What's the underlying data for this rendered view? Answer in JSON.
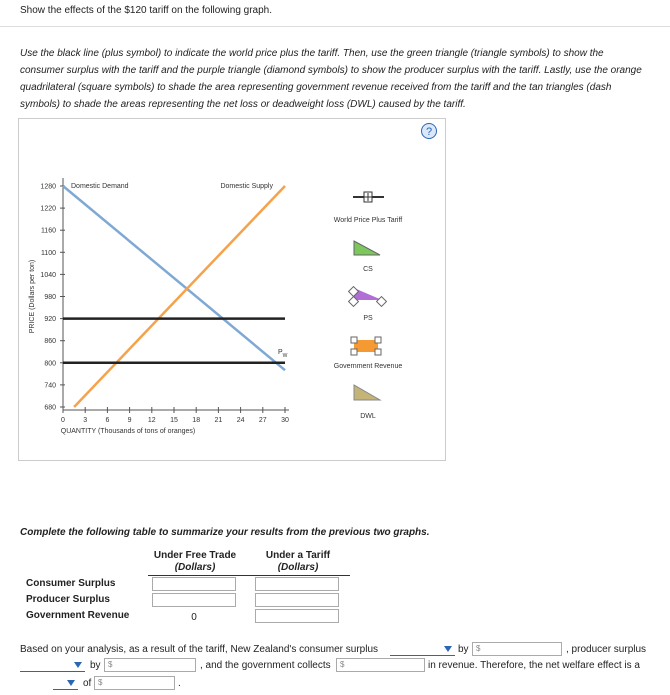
{
  "header": {
    "title": "Show the effects of the $120 tariff on the following graph."
  },
  "instructions": "Use the black line (plus symbol) to indicate the world price plus the tariff. Then, use the green triangle (triangle symbols) to show the consumer surplus with the tariff and the purple triangle (diamond symbols) to show the producer surplus with the tariff. Lastly, use the orange quadrilateral (square symbols) to shade the area representing government revenue received from the tariff and the tan triangles (dash symbols) to shade the areas representing the net loss or deadweight loss (DWL) caused by the tariff.",
  "chart_data": {
    "type": "line",
    "xlabel": "QUANTITY (Thousands of tons of oranges)",
    "ylabel": "PRICE (Dollars per ton)",
    "xlim": [
      0,
      30
    ],
    "ylim": [
      680,
      1280
    ],
    "xticks": [
      0,
      3,
      6,
      9,
      12,
      15,
      18,
      21,
      24,
      27,
      30
    ],
    "yticks": [
      680,
      740,
      800,
      860,
      920,
      980,
      1040,
      1100,
      1160,
      1220,
      1280
    ],
    "series": [
      {
        "name": "Domestic Demand",
        "color": "#7fa9d4",
        "x": [
          0,
          30
        ],
        "values": [
          1280,
          780
        ]
      },
      {
        "name": "Domestic Supply",
        "color": "#f5a24c",
        "x": [
          1.5,
          30
        ],
        "values": [
          680,
          1280
        ]
      },
      {
        "name": "P",
        "subscript": "W",
        "color": "#222222",
        "x": [
          0,
          30
        ],
        "values": [
          800,
          800
        ]
      },
      {
        "color": "#222222",
        "x": [
          0,
          30
        ],
        "values": [
          920,
          920
        ]
      }
    ],
    "tools": [
      "World Price Plus Tariff",
      "CS",
      "PS",
      "Government Revenue",
      "DWL"
    ]
  },
  "table": {
    "instruction": "Complete the following table to summarize your results from the previous two graphs.",
    "columns": [
      {
        "title": "Under Free Trade",
        "unit": "(Dollars)"
      },
      {
        "title": "Under a Tariff",
        "unit": "(Dollars)"
      }
    ],
    "rows": [
      {
        "label": "Consumer Surplus"
      },
      {
        "label": "Producer Surplus"
      },
      {
        "label": "Government Revenue",
        "free_trade": 0
      }
    ]
  },
  "sentence": {
    "currency": "$",
    "parts": [
      "Based on your analysis, as a result of the tariff, New Zealand's consumer surplus",
      "by",
      ", producer surplus",
      "by",
      ", and the government collects",
      "in revenue. Therefore, the net welfare effect is a",
      "of",
      "."
    ]
  }
}
